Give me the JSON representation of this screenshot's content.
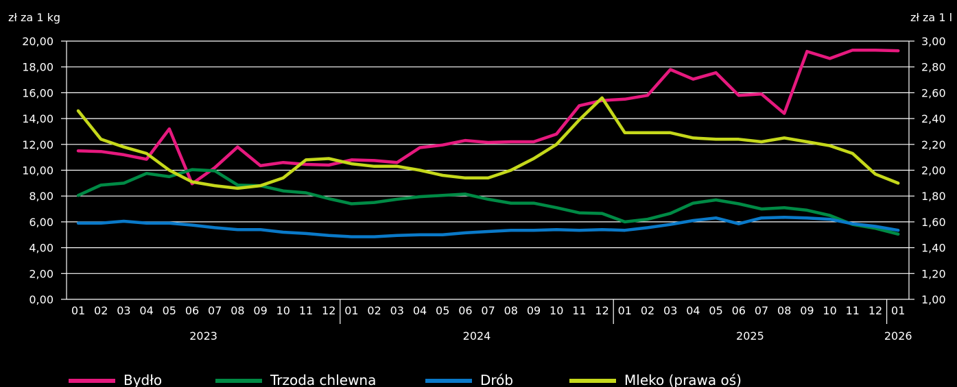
{
  "chart_data": {
    "type": "line",
    "left_unit": "zł za 1 kg",
    "right_unit": "zł za 1 l",
    "ylim_left": [
      0,
      20
    ],
    "ylim_right": [
      1.0,
      3.0
    ],
    "left_ticks": [
      "0,00",
      "2,00",
      "4,00",
      "6,00",
      "8,00",
      "10,00",
      "12,00",
      "14,00",
      "16,00",
      "18,00",
      "20,00"
    ],
    "right_ticks": [
      "1,00",
      "1,20",
      "1,40",
      "1,60",
      "1,80",
      "2,00",
      "2,20",
      "2,40",
      "2,60",
      "2,80",
      "3,00"
    ],
    "x": [
      "2023-01",
      "2023-02",
      "2023-03",
      "2023-04",
      "2023-05",
      "2023-06",
      "2023-07",
      "2023-08",
      "2023-09",
      "2023-10",
      "2023-11",
      "2023-12",
      "2024-01",
      "2024-02",
      "2024-03",
      "2024-04",
      "2024-05",
      "2024-06",
      "2024-07",
      "2024-08",
      "2024-09",
      "2024-10",
      "2024-11",
      "2024-12",
      "2025-01",
      "2025-02",
      "2025-03",
      "2025-04",
      "2025-05",
      "2025-06",
      "2025-07",
      "2025-08",
      "2025-09",
      "2025-10",
      "2025-11",
      "2025-12",
      "2026-01"
    ],
    "x_tick_labels": [
      "01",
      "02",
      "03",
      "04",
      "05",
      "06",
      "07",
      "08",
      "09",
      "10",
      "11",
      "12",
      "01",
      "02",
      "03",
      "04",
      "05",
      "06",
      "07",
      "08",
      "09",
      "10",
      "11",
      "12",
      "01",
      "02",
      "03",
      "04",
      "05",
      "06",
      "07",
      "08",
      "09",
      "10",
      "11",
      "12",
      "01"
    ],
    "years": [
      {
        "label": "2023",
        "start": 0,
        "end": 11
      },
      {
        "label": "2024",
        "start": 12,
        "end": 23
      },
      {
        "label": "2025",
        "start": 24,
        "end": 35
      },
      {
        "label": "2026",
        "start": 36,
        "end": 36
      }
    ],
    "grid": true,
    "legend_placement": "bottom",
    "series": [
      {
        "name": "Bydło",
        "axis": "left",
        "color": "#e6197e",
        "values": [
          11.5,
          11.45,
          11.2,
          10.85,
          13.2,
          8.95,
          10.2,
          11.8,
          10.35,
          10.6,
          10.45,
          10.4,
          10.8,
          10.75,
          10.6,
          11.75,
          11.95,
          12.3,
          12.15,
          12.2,
          12.2,
          12.8,
          15.0,
          15.4,
          15.5,
          15.8,
          17.8,
          17.05,
          17.55,
          15.8,
          15.9,
          14.4,
          19.2,
          18.65,
          19.3,
          19.3,
          19.25
        ]
      },
      {
        "name": "Trzoda chlewna",
        "axis": "left",
        "color": "#008a45",
        "values": [
          8.05,
          8.85,
          9.0,
          9.75,
          9.5,
          10.05,
          9.95,
          8.85,
          8.8,
          8.4,
          8.25,
          7.8,
          7.4,
          7.5,
          7.75,
          7.95,
          8.05,
          8.15,
          7.75,
          7.45,
          7.45,
          7.1,
          6.7,
          6.65,
          6.0,
          6.2,
          6.65,
          7.45,
          7.7,
          7.4,
          7.0,
          7.1,
          6.9,
          6.5,
          5.8,
          5.5,
          5.05
        ]
      },
      {
        "name": "Drób",
        "axis": "left",
        "color": "#0a79c8",
        "values": [
          5.9,
          5.9,
          6.05,
          5.9,
          5.9,
          5.75,
          5.55,
          5.4,
          5.4,
          5.2,
          5.1,
          4.95,
          4.85,
          4.85,
          4.95,
          5.0,
          5.0,
          5.15,
          5.25,
          5.35,
          5.35,
          5.4,
          5.35,
          5.4,
          5.35,
          5.55,
          5.8,
          6.1,
          6.3,
          5.85,
          6.3,
          6.35,
          6.3,
          6.2,
          5.85,
          5.65,
          5.35
        ]
      },
      {
        "name": "Mleko (prawa oś)",
        "axis": "right",
        "color": "#c5d81b",
        "values": [
          2.46,
          2.24,
          2.18,
          2.13,
          2.0,
          1.91,
          1.88,
          1.86,
          1.88,
          1.94,
          2.08,
          2.09,
          2.05,
          2.03,
          2.03,
          2.0,
          1.96,
          1.94,
          1.94,
          2.0,
          2.09,
          2.2,
          2.39,
          2.56,
          2.29,
          2.29,
          2.29,
          2.25,
          2.24,
          2.24,
          2.22,
          2.25,
          2.22,
          2.19,
          2.13,
          1.97,
          1.9
        ]
      }
    ]
  }
}
